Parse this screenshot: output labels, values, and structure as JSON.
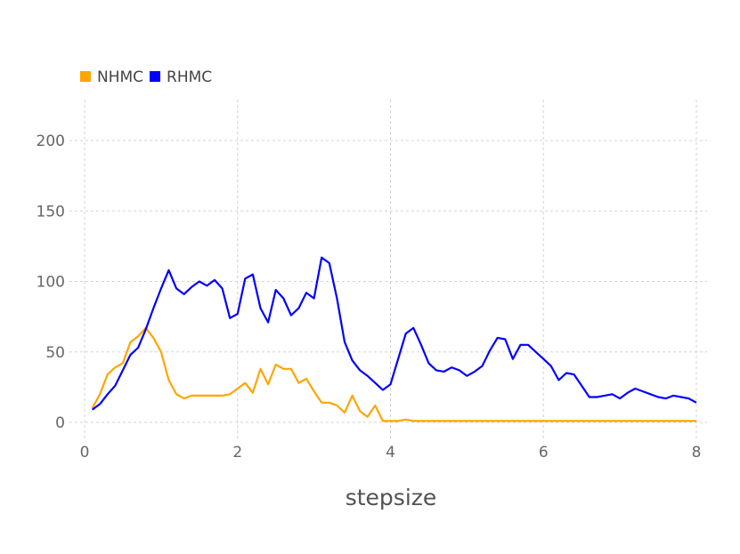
{
  "chart_data": {
    "type": "line",
    "title": "",
    "xlabel": "stepsize",
    "ylabel": "",
    "xlim": [
      0,
      8.1
    ],
    "ylim": [
      -8,
      225
    ],
    "xticks": [
      0,
      2,
      4,
      6,
      8
    ],
    "yticks": [
      0,
      50,
      100,
      150,
      200
    ],
    "xtick_labels": [
      "0",
      "2",
      "4",
      "6",
      "8"
    ],
    "ytick_labels": [
      "0",
      "50",
      "100",
      "150",
      "200"
    ],
    "grid": true,
    "legend_position": "top-left",
    "x": [
      0.1,
      0.2,
      0.3,
      0.4,
      0.5,
      0.6,
      0.7,
      0.8,
      0.9,
      1.0,
      1.1,
      1.2,
      1.3,
      1.4,
      1.5,
      1.6,
      1.7,
      1.8,
      1.9,
      2.0,
      2.1,
      2.2,
      2.3,
      2.4,
      2.5,
      2.6,
      2.7,
      2.8,
      2.9,
      3.0,
      3.1,
      3.2,
      3.3,
      3.4,
      3.5,
      3.6,
      3.7,
      3.8,
      3.9,
      4.0,
      4.1,
      4.2,
      4.3,
      4.4,
      4.5,
      4.6,
      4.7,
      4.8,
      4.9,
      5.0,
      5.1,
      5.2,
      5.3,
      5.4,
      5.5,
      5.6,
      5.7,
      5.8,
      5.9,
      6.0,
      6.1,
      6.2,
      6.3,
      6.4,
      6.5,
      6.6,
      6.7,
      6.8,
      6.9,
      7.0,
      7.1,
      7.2,
      7.3,
      7.4,
      7.5,
      7.6,
      7.7,
      7.8,
      7.9,
      8.0
    ],
    "series": [
      {
        "name": "NHMC",
        "color": "#FFA500",
        "values": [
          10,
          20,
          34,
          39,
          42,
          57,
          61,
          67,
          60,
          50,
          30,
          20,
          17,
          19,
          19,
          19,
          19,
          19,
          20,
          24,
          28,
          21,
          38,
          27,
          41,
          38,
          38,
          28,
          31,
          22,
          14,
          14,
          12,
          7,
          19,
          8,
          4,
          12,
          1,
          1,
          1,
          2,
          1,
          1,
          1,
          1,
          1,
          1,
          1,
          1,
          1,
          1,
          1,
          1,
          1,
          1,
          1,
          1,
          1,
          1,
          1,
          1,
          1,
          1,
          1,
          1,
          1,
          1,
          1,
          1,
          1,
          1,
          1,
          1,
          1,
          1,
          1,
          1,
          1,
          1
        ]
      },
      {
        "name": "RHMC",
        "color": "#0000FF",
        "values": [
          9,
          13,
          20,
          26,
          37,
          48,
          53,
          66,
          81,
          95,
          108,
          95,
          91,
          96,
          100,
          97,
          101,
          95,
          74,
          77,
          102,
          105,
          81,
          71,
          94,
          88,
          76,
          81,
          92,
          88,
          117,
          113,
          88,
          57,
          44,
          37,
          33,
          28,
          23,
          27,
          45,
          63,
          67,
          55,
          42,
          37,
          36,
          39,
          37,
          33,
          36,
          40,
          51,
          60,
          59,
          45,
          55,
          55,
          50,
          45,
          40,
          30,
          35,
          34,
          26,
          18,
          18,
          19,
          20,
          17,
          21,
          24,
          22,
          20,
          18,
          17,
          19,
          18,
          17,
          14
        ]
      }
    ]
  }
}
